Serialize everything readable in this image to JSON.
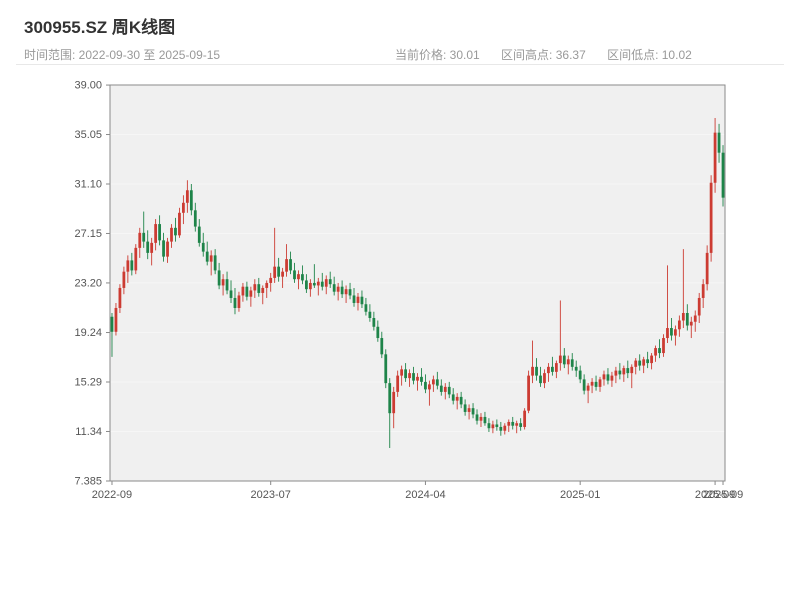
{
  "header": {
    "title": "300955.SZ 周K线图",
    "time_range_label": "时间范围: 2022-09-30 至 2025-09-15",
    "stats": {
      "current_price": "当前价格: 30.01",
      "range_high": "区间高点: 36.37",
      "range_low": "区间低点: 10.02"
    }
  },
  "chart_data": {
    "type": "candlestick",
    "title": "300955.SZ 周K线图",
    "symbol": "300955.SZ",
    "interval": "weekly",
    "start_date": "2022-09-30",
    "end_date": "2025-09-15",
    "current_price": 30.01,
    "range_high": 36.37,
    "range_low": 10.02,
    "legend": "none",
    "grid": "subtle-white-horizontal",
    "y_axis": {
      "min": 7.385,
      "max": 39.005,
      "tick_labels": [
        "39.00",
        "35.05",
        "31.10",
        "27.15",
        "23.20",
        "19.24",
        "15.29",
        "11.34",
        "7.385"
      ]
    },
    "x_axis": {
      "ticks": [
        {
          "label": "2022-09",
          "index": 0
        },
        {
          "label": "2023-07",
          "index": 40
        },
        {
          "label": "2024-04",
          "index": 79
        },
        {
          "label": "2025-01",
          "index": 118
        },
        {
          "label": "2025-09",
          "index": 152
        },
        {
          "label": "2025-09",
          "index": 154
        }
      ]
    },
    "colors": {
      "up": "#cc3b32",
      "down": "#1e8449",
      "plot_bg": "#f0f0f0",
      "axis": "#888888",
      "label": "#555555"
    },
    "ohlc_format": [
      "open",
      "high",
      "low",
      "close"
    ],
    "candles_ohlc": [
      [
        20.5,
        20.8,
        17.3,
        19.3
      ],
      [
        19.3,
        21.6,
        19.0,
        21.2
      ],
      [
        21.2,
        23.1,
        20.8,
        22.8
      ],
      [
        22.8,
        24.5,
        22.3,
        24.1
      ],
      [
        24.1,
        25.4,
        23.2,
        25.0
      ],
      [
        25.0,
        25.6,
        23.8,
        24.2
      ],
      [
        24.2,
        26.3,
        23.9,
        26.0
      ],
      [
        26.0,
        27.6,
        25.2,
        27.2
      ],
      [
        27.2,
        28.9,
        26.0,
        26.5
      ],
      [
        26.5,
        27.4,
        25.1,
        25.6
      ],
      [
        25.6,
        26.8,
        24.6,
        26.4
      ],
      [
        26.4,
        28.3,
        25.8,
        27.9
      ],
      [
        27.9,
        28.6,
        26.2,
        26.6
      ],
      [
        26.6,
        27.2,
        24.9,
        25.3
      ],
      [
        25.3,
        26.8,
        24.8,
        26.5
      ],
      [
        26.5,
        27.9,
        26.0,
        27.6
      ],
      [
        27.6,
        28.4,
        26.5,
        27.0
      ],
      [
        27.0,
        29.2,
        26.8,
        28.8
      ],
      [
        28.8,
        30.2,
        27.9,
        29.6
      ],
      [
        29.6,
        31.4,
        28.8,
        30.6
      ],
      [
        30.6,
        31.1,
        28.6,
        29.0
      ],
      [
        29.0,
        29.6,
        27.3,
        27.7
      ],
      [
        27.7,
        28.3,
        26.1,
        26.4
      ],
      [
        26.4,
        27.2,
        25.3,
        25.7
      ],
      [
        25.7,
        26.5,
        24.6,
        24.9
      ],
      [
        24.9,
        25.8,
        23.8,
        25.4
      ],
      [
        25.4,
        25.9,
        23.9,
        24.2
      ],
      [
        24.2,
        24.8,
        22.7,
        23.0
      ],
      [
        23.0,
        23.9,
        22.2,
        23.5
      ],
      [
        23.5,
        24.1,
        22.3,
        22.6
      ],
      [
        22.6,
        23.4,
        21.6,
        22.0
      ],
      [
        22.0,
        22.8,
        20.7,
        21.2
      ],
      [
        21.2,
        22.5,
        20.9,
        22.2
      ],
      [
        22.2,
        23.2,
        21.7,
        22.9
      ],
      [
        22.9,
        23.3,
        21.8,
        22.1
      ],
      [
        22.1,
        22.9,
        21.3,
        22.6
      ],
      [
        22.6,
        23.5,
        22.0,
        23.1
      ],
      [
        23.1,
        23.6,
        22.1,
        22.4
      ],
      [
        22.4,
        23.0,
        21.5,
        22.8
      ],
      [
        22.8,
        23.4,
        22.0,
        23.2
      ],
      [
        23.2,
        24.0,
        22.5,
        23.6
      ],
      [
        23.6,
        27.6,
        23.2,
        24.5
      ],
      [
        24.5,
        25.2,
        23.3,
        23.7
      ],
      [
        23.7,
        24.4,
        22.8,
        24.1
      ],
      [
        24.1,
        26.3,
        23.7,
        25.1
      ],
      [
        25.1,
        25.7,
        23.9,
        24.2
      ],
      [
        24.2,
        24.8,
        23.2,
        23.5
      ],
      [
        23.5,
        24.2,
        22.7,
        23.9
      ],
      [
        23.9,
        24.6,
        23.1,
        23.4
      ],
      [
        23.4,
        23.9,
        22.4,
        22.7
      ],
      [
        22.7,
        23.5,
        22.1,
        23.2
      ],
      [
        23.2,
        24.7,
        22.8,
        23.0
      ],
      [
        23.0,
        23.6,
        22.2,
        23.3
      ],
      [
        23.3,
        24.0,
        22.6,
        22.9
      ],
      [
        22.9,
        23.8,
        22.3,
        23.5
      ],
      [
        23.5,
        24.1,
        22.8,
        23.1
      ],
      [
        23.1,
        23.7,
        22.2,
        22.5
      ],
      [
        22.5,
        23.2,
        21.8,
        22.9
      ],
      [
        22.9,
        23.4,
        22.0,
        22.3
      ],
      [
        22.3,
        23.0,
        21.6,
        22.7
      ],
      [
        22.7,
        23.2,
        21.9,
        22.2
      ],
      [
        22.2,
        22.8,
        21.3,
        21.6
      ],
      [
        21.6,
        22.4,
        21.0,
        22.1
      ],
      [
        22.1,
        22.6,
        21.2,
        21.5
      ],
      [
        21.5,
        22.0,
        20.6,
        20.9
      ],
      [
        20.9,
        21.5,
        20.1,
        20.4
      ],
      [
        20.4,
        20.9,
        19.4,
        19.7
      ],
      [
        19.7,
        20.2,
        18.5,
        18.8
      ],
      [
        18.8,
        19.3,
        17.2,
        17.5
      ],
      [
        17.5,
        17.9,
        14.8,
        15.2
      ],
      [
        15.2,
        15.6,
        10.02,
        12.8
      ],
      [
        12.8,
        14.9,
        11.6,
        14.5
      ],
      [
        14.5,
        16.2,
        14.1,
        15.8
      ],
      [
        15.8,
        16.6,
        15.0,
        16.3
      ],
      [
        16.3,
        16.8,
        15.3,
        15.6
      ],
      [
        15.6,
        16.3,
        14.9,
        16.0
      ],
      [
        16.0,
        16.5,
        15.1,
        15.4
      ],
      [
        15.4,
        16.0,
        14.6,
        15.7
      ],
      [
        15.7,
        16.4,
        15.0,
        15.3
      ],
      [
        15.3,
        15.9,
        14.4,
        14.7
      ],
      [
        14.7,
        15.4,
        13.4,
        15.1
      ],
      [
        15.1,
        15.8,
        14.5,
        15.5
      ],
      [
        15.5,
        16.1,
        14.7,
        15.0
      ],
      [
        15.0,
        15.5,
        14.2,
        14.5
      ],
      [
        14.5,
        15.2,
        13.9,
        14.9
      ],
      [
        14.9,
        15.3,
        14.0,
        14.3
      ],
      [
        14.3,
        14.8,
        13.5,
        13.8
      ],
      [
        13.8,
        14.4,
        13.1,
        14.1
      ],
      [
        14.1,
        14.5,
        13.2,
        13.5
      ],
      [
        13.5,
        13.9,
        12.6,
        12.9
      ],
      [
        12.9,
        13.5,
        12.3,
        13.2
      ],
      [
        13.2,
        13.6,
        12.4,
        12.7
      ],
      [
        12.7,
        13.1,
        11.9,
        12.2
      ],
      [
        12.2,
        12.8,
        11.7,
        12.5
      ],
      [
        12.5,
        12.9,
        11.8,
        12.0
      ],
      [
        12.0,
        12.4,
        11.3,
        11.6
      ],
      [
        11.6,
        12.2,
        11.2,
        11.9
      ],
      [
        11.9,
        12.3,
        11.4,
        11.7
      ],
      [
        11.7,
        12.1,
        11.0,
        11.4
      ],
      [
        11.4,
        12.0,
        11.1,
        11.8
      ],
      [
        11.8,
        12.3,
        11.3,
        12.1
      ],
      [
        12.1,
        12.5,
        11.5,
        11.8
      ],
      [
        11.8,
        12.2,
        11.2,
        12.0
      ],
      [
        12.0,
        12.4,
        11.4,
        11.7
      ],
      [
        11.7,
        13.2,
        11.5,
        13.0
      ],
      [
        13.0,
        16.2,
        12.8,
        15.8
      ],
      [
        15.8,
        18.6,
        15.2,
        16.5
      ],
      [
        16.5,
        17.2,
        15.4,
        15.8
      ],
      [
        15.8,
        16.5,
        14.9,
        15.2
      ],
      [
        15.2,
        16.3,
        14.8,
        16.0
      ],
      [
        16.0,
        16.8,
        15.3,
        16.5
      ],
      [
        16.5,
        17.3,
        15.8,
        16.1
      ],
      [
        16.1,
        17.0,
        15.6,
        16.8
      ],
      [
        16.8,
        21.8,
        16.2,
        17.4
      ],
      [
        17.4,
        18.0,
        16.4,
        16.7
      ],
      [
        16.7,
        17.4,
        15.9,
        17.1
      ],
      [
        17.1,
        17.6,
        16.2,
        16.5
      ],
      [
        16.5,
        17.0,
        15.7,
        16.2
      ],
      [
        16.2,
        16.6,
        15.2,
        15.5
      ],
      [
        15.5,
        15.9,
        14.3,
        14.6
      ],
      [
        14.6,
        15.2,
        13.6,
        15.0
      ],
      [
        15.0,
        15.6,
        14.4,
        15.3
      ],
      [
        15.3,
        15.8,
        14.6,
        14.9
      ],
      [
        14.9,
        15.7,
        14.5,
        15.5
      ],
      [
        15.5,
        16.2,
        15.0,
        15.9
      ],
      [
        15.9,
        16.4,
        15.1,
        15.4
      ],
      [
        15.4,
        16.1,
        14.9,
        15.8
      ],
      [
        15.8,
        16.5,
        15.2,
        16.2
      ],
      [
        16.2,
        16.8,
        15.5,
        15.9
      ],
      [
        15.9,
        16.6,
        15.3,
        16.4
      ],
      [
        16.4,
        17.0,
        15.6,
        16.0
      ],
      [
        16.0,
        16.7,
        14.8,
        16.5
      ],
      [
        16.5,
        17.2,
        15.9,
        17.0
      ],
      [
        17.0,
        17.5,
        16.2,
        16.6
      ],
      [
        16.6,
        17.3,
        16.0,
        17.1
      ],
      [
        17.1,
        17.7,
        16.4,
        16.8
      ],
      [
        16.8,
        17.6,
        16.3,
        17.4
      ],
      [
        17.4,
        18.2,
        16.9,
        18.0
      ],
      [
        18.0,
        18.7,
        17.2,
        17.6
      ],
      [
        17.6,
        19.1,
        17.3,
        18.8
      ],
      [
        18.8,
        24.6,
        18.4,
        19.6
      ],
      [
        19.6,
        20.4,
        18.6,
        19.0
      ],
      [
        19.0,
        19.8,
        18.2,
        19.5
      ],
      [
        19.5,
        20.6,
        18.9,
        20.2
      ],
      [
        20.2,
        25.9,
        19.6,
        20.8
      ],
      [
        20.8,
        21.5,
        19.4,
        19.8
      ],
      [
        19.8,
        20.5,
        18.8,
        20.1
      ],
      [
        20.1,
        21.0,
        19.3,
        20.6
      ],
      [
        20.6,
        22.4,
        20.0,
        22.0
      ],
      [
        22.0,
        23.5,
        21.2,
        23.1
      ],
      [
        23.1,
        26.2,
        22.6,
        25.6
      ],
      [
        25.6,
        31.8,
        24.9,
        31.2
      ],
      [
        31.2,
        36.37,
        30.4,
        35.2
      ],
      [
        35.2,
        35.9,
        32.8,
        33.6
      ],
      [
        33.6,
        34.2,
        29.3,
        30.01
      ]
    ]
  }
}
